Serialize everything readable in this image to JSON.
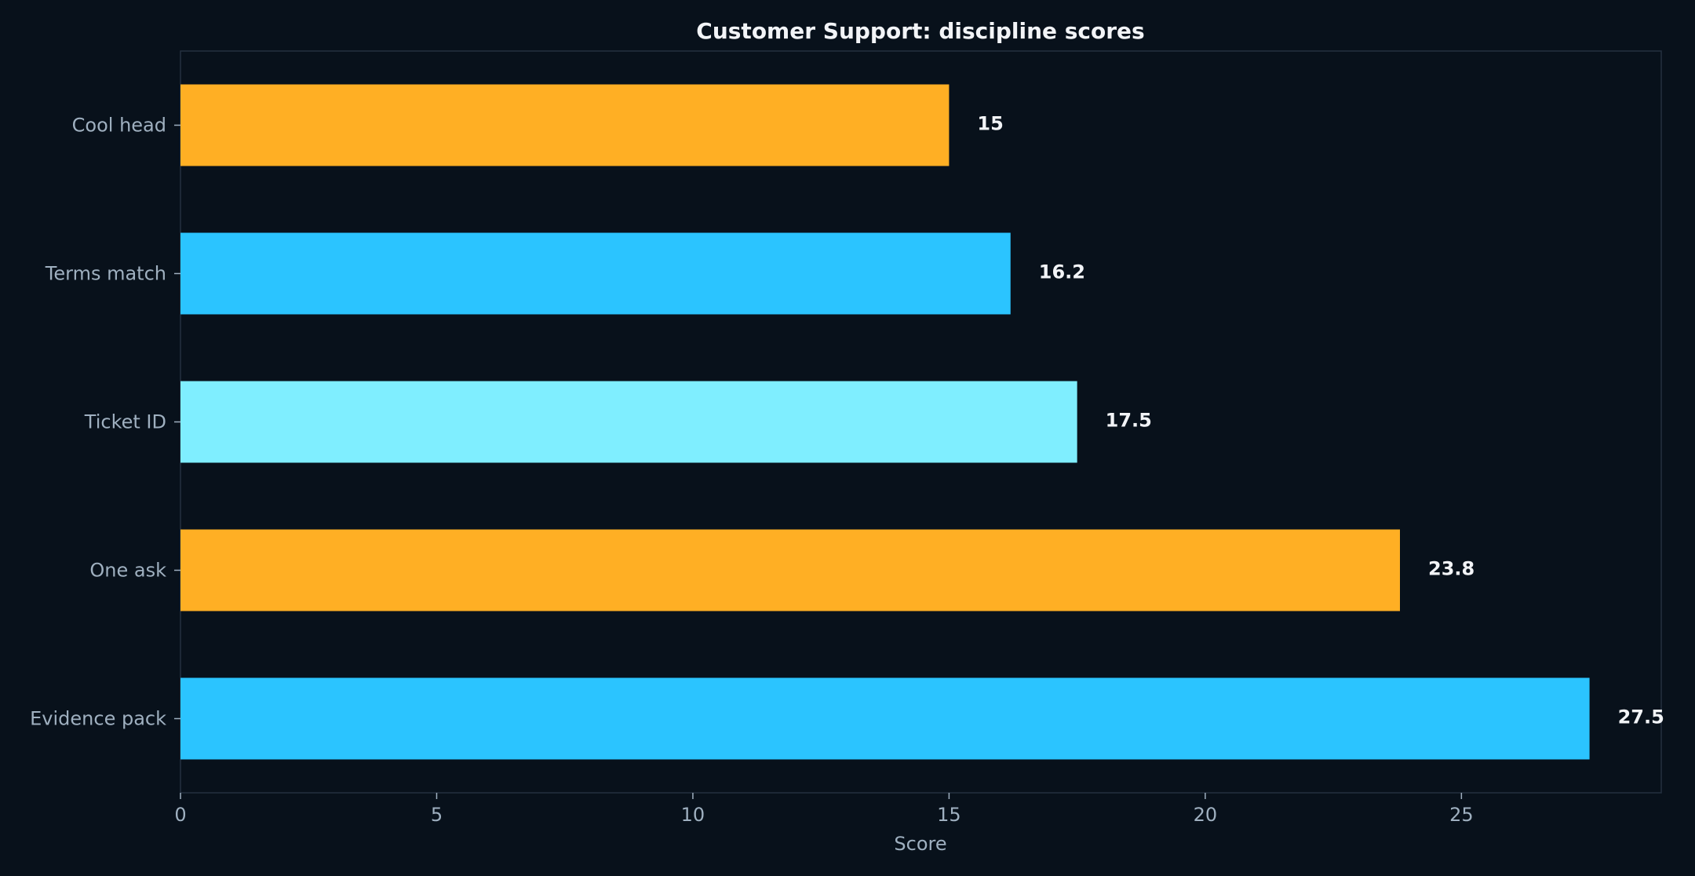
{
  "chart_data": {
    "type": "bar",
    "orientation": "horizontal",
    "title": "Customer Support: discipline scores",
    "xlabel": "Score",
    "ylabel": "",
    "categories": [
      "Cool head",
      "Terms match",
      "Ticket ID",
      "One ask",
      "Evidence pack"
    ],
    "values": [
      15,
      16.2,
      17.5,
      23.8,
      27.5
    ],
    "value_labels": [
      "15",
      "16.2",
      "17.5",
      "23.8",
      "27.5"
    ],
    "colors": [
      "#ffaf24",
      "#2bc4ff",
      "#7feeff",
      "#ffaf24",
      "#2bc4ff"
    ],
    "xlim": [
      0,
      28.9
    ],
    "xticks": [
      0,
      5,
      10,
      15,
      20,
      25
    ],
    "xtick_labels": [
      "0",
      "5",
      "10",
      "15",
      "20",
      "25"
    ],
    "grid": false,
    "legend": "none",
    "background": "#08111b",
    "frame_color": "#243140",
    "text_color": "#9fb0c0",
    "label_color": "#f2f4f7"
  }
}
